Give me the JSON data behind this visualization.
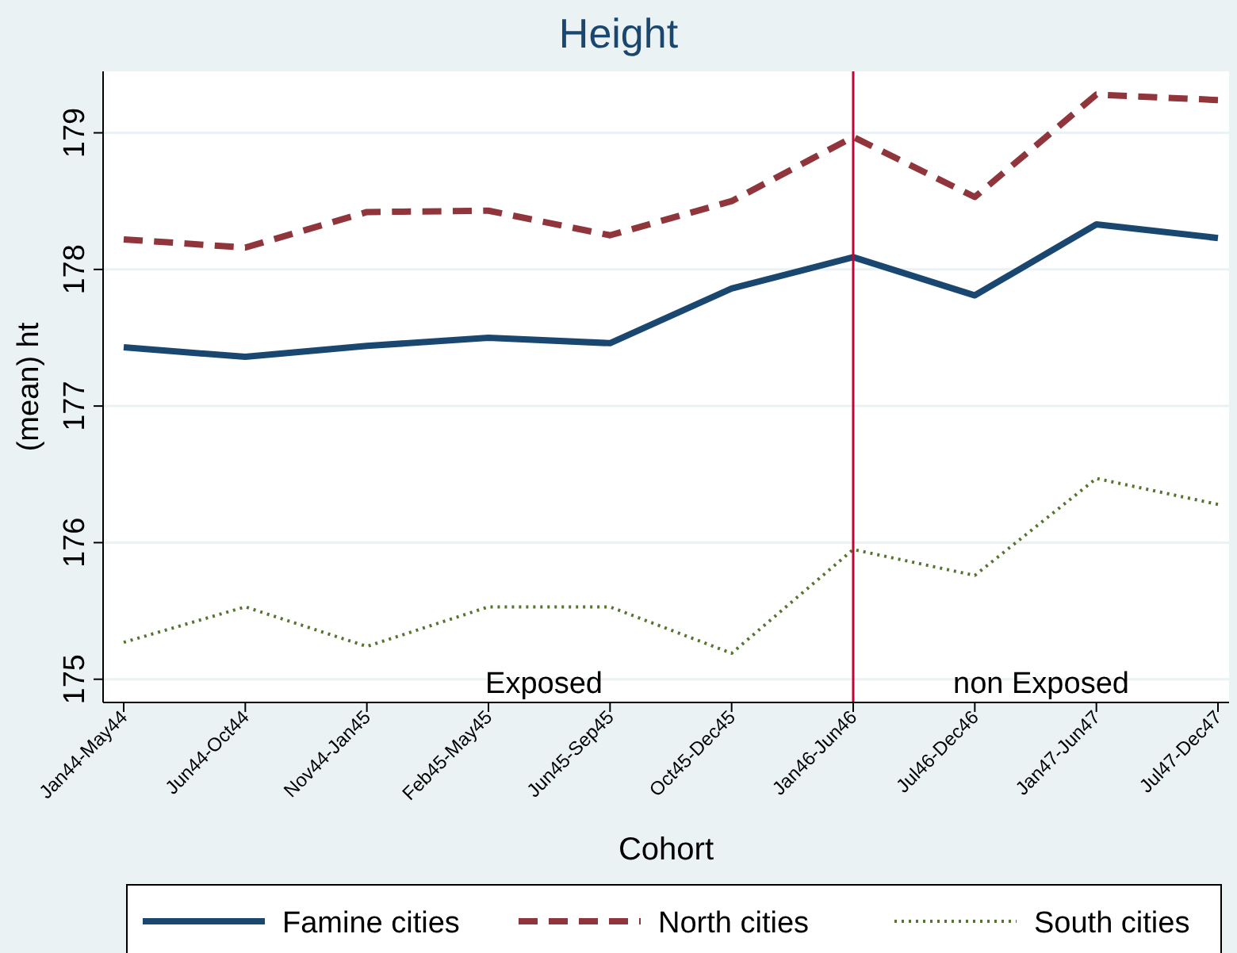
{
  "chart_data": {
    "type": "line",
    "title": "Height",
    "xlabel": "Cohort",
    "ylabel": "(mean) ht",
    "categories": [
      "Jan44-May44",
      "Jun44-Oct44",
      "Nov44-Jan45",
      "Feb45-May45",
      "Jun45-Sep45",
      "Oct45-Dec45",
      "Jan46-Jun46",
      "Jul46-Dec46",
      "Jan47-Jun47",
      "Jul47-Dec47"
    ],
    "series": [
      {
        "name": "Famine cities",
        "color": "#1a476f",
        "line_style": "solid",
        "values": [
          177.43,
          177.36,
          177.44,
          177.5,
          177.46,
          177.86,
          178.09,
          177.81,
          178.33,
          178.23
        ]
      },
      {
        "name": "North cities",
        "color": "#90353b",
        "line_style": "dashed",
        "values": [
          178.22,
          178.16,
          178.42,
          178.43,
          178.25,
          178.5,
          178.97,
          178.53,
          179.28,
          179.24
        ]
      },
      {
        "name": "South cities",
        "color": "#55752f",
        "line_style": "dotted",
        "values": [
          175.27,
          175.53,
          175.24,
          175.53,
          175.53,
          175.19,
          175.95,
          175.76,
          176.47,
          176.28
        ]
      }
    ],
    "ylim": [
      174.83,
      179.45
    ],
    "yticks": [
      175,
      176,
      177,
      178,
      179
    ],
    "grid": "y",
    "legend": "bottom",
    "marker": "none",
    "ref_lines": [
      {
        "axis": "x",
        "value": "Jan46-Jun46",
        "color": "#c10534"
      }
    ],
    "annotations": [
      "Exposed",
      "non Exposed"
    ]
  }
}
